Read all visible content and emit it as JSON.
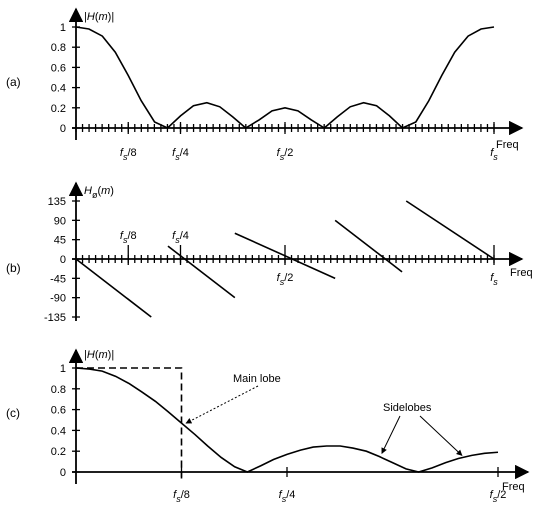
{
  "chart_data": [
    {
      "panel": "(a)",
      "type": "line",
      "ylabel": "|H(m)|",
      "xlabel": "Freq",
      "ylim": [
        0,
        1
      ],
      "y_ticks": [
        "0",
        "0.2",
        "0.4",
        "0.6",
        "0.8",
        "1"
      ],
      "y_tick_values": [
        0,
        0.2,
        0.4,
        0.6,
        0.8,
        1
      ],
      "x_ticks": [
        {
          "label": "fs/8",
          "x": 0.125
        },
        {
          "label": "fs/4",
          "x": 0.25
        },
        {
          "label": "fs/2",
          "x": 0.5
        },
        {
          "label": "fs",
          "x": 1.0
        }
      ],
      "xlim": [
        0,
        1
      ],
      "minor_ticks": 64,
      "x": [
        0,
        0.031,
        0.063,
        0.094,
        0.125,
        0.156,
        0.188,
        0.219,
        0.25,
        0.281,
        0.313,
        0.344,
        0.375,
        0.406,
        0.438,
        0.469,
        0.5,
        0.531,
        0.563,
        0.594,
        0.625,
        0.656,
        0.688,
        0.719,
        0.75,
        0.781,
        0.813,
        0.844,
        0.875,
        0.906,
        0.938,
        0.969,
        1.0
      ],
      "values": [
        1,
        0.98,
        0.91,
        0.75,
        0.52,
        0.27,
        0.06,
        0,
        0.12,
        0.22,
        0.25,
        0.21,
        0.11,
        0,
        0.08,
        0.17,
        0.2,
        0.17,
        0.08,
        0,
        0.11,
        0.21,
        0.25,
        0.22,
        0.12,
        0,
        0.06,
        0.27,
        0.52,
        0.75,
        0.91,
        0.98,
        1
      ]
    },
    {
      "panel": "(b)",
      "type": "line",
      "ylabel": "Hø(m)",
      "xlabel": "Freq",
      "ylim": [
        -135,
        135
      ],
      "y_ticks": [
        "135",
        "90",
        "45",
        "0",
        "-45",
        "-90",
        "-135"
      ],
      "y_tick_values": [
        135,
        90,
        45,
        0,
        -45,
        -90,
        -135
      ],
      "x_ticks": [
        {
          "label": "fs/8",
          "x": 0.125
        },
        {
          "label": "fs/4",
          "x": 0.25
        },
        {
          "label": "fs/2",
          "x": 0.5
        },
        {
          "label": "fs",
          "x": 1.0
        }
      ],
      "xlim": [
        0,
        1
      ],
      "minor_ticks": 64,
      "series": [
        {
          "x": [
            0,
            0.18
          ],
          "values": [
            0,
            -135
          ]
        },
        {
          "x": [
            0.22,
            0.38
          ],
          "values": [
            30,
            -90
          ]
        },
        {
          "x": [
            0.38,
            0.62
          ],
          "values": [
            60,
            -45
          ]
        },
        {
          "x": [
            0.62,
            0.78
          ],
          "values": [
            90,
            -30
          ]
        },
        {
          "x": [
            0.79,
            1.0
          ],
          "values": [
            135,
            0
          ]
        }
      ]
    },
    {
      "panel": "(c)",
      "type": "line",
      "ylabel": "|H(m)|",
      "xlabel": "Freq",
      "ylim": [
        0,
        1
      ],
      "y_ticks": [
        "0",
        "0.2",
        "0.4",
        "0.6",
        "0.8",
        "1"
      ],
      "y_tick_values": [
        0,
        0.2,
        0.4,
        0.6,
        0.8,
        1
      ],
      "x_ticks": [
        {
          "label": "fs/8",
          "x": 0.125
        },
        {
          "label": "fs/4",
          "x": 0.25
        },
        {
          "label": "fs/2",
          "x": 0.5
        }
      ],
      "xlim": [
        0,
        0.5
      ],
      "x": [
        0,
        0.016,
        0.031,
        0.047,
        0.063,
        0.078,
        0.094,
        0.109,
        0.125,
        0.141,
        0.156,
        0.172,
        0.188,
        0.203,
        0.219,
        0.234,
        0.25,
        0.266,
        0.281,
        0.297,
        0.313,
        0.328,
        0.344,
        0.359,
        0.375,
        0.391,
        0.406,
        0.422,
        0.438,
        0.453,
        0.469,
        0.484,
        0.5
      ],
      "values": [
        1,
        0.99,
        0.97,
        0.92,
        0.85,
        0.77,
        0.68,
        0.58,
        0.47,
        0.36,
        0.25,
        0.14,
        0.05,
        0.0,
        0.06,
        0.12,
        0.17,
        0.21,
        0.24,
        0.25,
        0.25,
        0.23,
        0.2,
        0.15,
        0.09,
        0.03,
        0.0,
        0.04,
        0.09,
        0.13,
        0.16,
        0.18,
        0.19
      ],
      "ideal_lowpass": {
        "cutoff": 0.125,
        "level": 1
      },
      "annotations": [
        {
          "text": "Main lobe"
        },
        {
          "text": "Sidelobes"
        }
      ]
    }
  ]
}
